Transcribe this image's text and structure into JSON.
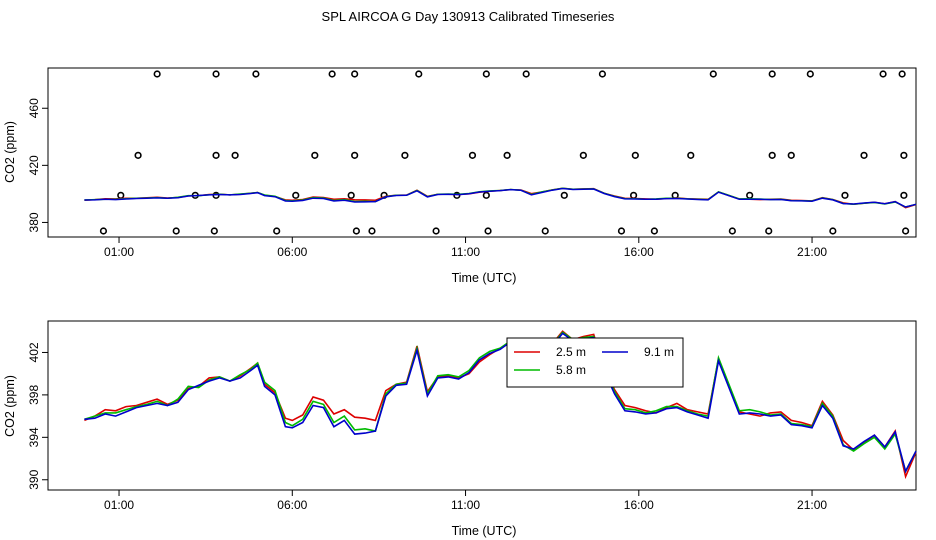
{
  "title": "SPL AIRCOA G  Day 130913  Calibrated Timeseries",
  "chart_data": [
    {
      "type": "scatter",
      "xlabel": "Time (UTC)",
      "ylabel": "CO2 (ppm)",
      "x_ticks": [
        "01:00",
        "06:00",
        "11:00",
        "16:00",
        "21:00"
      ],
      "x_tick_hours": [
        1,
        6,
        11,
        16,
        21
      ],
      "xlim": [
        -1.05,
        24.0
      ],
      "y_ticks": [
        380,
        420,
        460
      ],
      "ylim": [
        374,
        484
      ],
      "grid": false,
      "reference_points": {
        "x": [
          0.55,
          1.05,
          1.55,
          2.1,
          2.65,
          3.2,
          3.75,
          3.8,
          3.8,
          3.8,
          4.35,
          4.95,
          5.55,
          6.1,
          6.65,
          7.15,
          7.7,
          7.8,
          7.8,
          7.85,
          8.3,
          8.65,
          9.25,
          9.65,
          10.15,
          10.75,
          11.2,
          11.6,
          11.6,
          11.65,
          12.2,
          12.75,
          13.3,
          13.85,
          14.4,
          14.95,
          15.5,
          15.85,
          15.9,
          16.45,
          17.05,
          17.5,
          18.15,
          18.7,
          19.2,
          19.75,
          19.85,
          19.85,
          20.4,
          20.95,
          21.6,
          21.95,
          22.5,
          23.05,
          23.6,
          23.65,
          23.65,
          23.7
        ],
        "y": [
          374,
          399,
          427,
          484,
          374,
          399,
          374,
          427,
          484,
          399,
          427,
          484,
          374,
          399,
          427,
          484,
          399,
          484,
          427,
          374,
          374,
          399,
          427,
          484,
          374,
          399,
          427,
          484,
          399,
          374,
          427,
          484,
          374,
          399,
          427,
          484,
          374,
          399,
          427,
          374,
          399,
          427,
          484,
          374,
          399,
          374,
          484,
          427,
          427,
          484,
          374,
          399,
          427,
          484,
          484,
          399,
          427,
          374
        ]
      },
      "series_shared_x": [
        -0.95,
        -0.6,
        -0.3,
        0.0,
        0.3,
        0.6,
        0.9,
        1.2,
        1.5,
        1.8,
        2.1,
        2.4,
        2.7,
        3.0,
        3.3,
        3.6,
        3.9,
        4.2,
        4.5,
        4.8,
        5.0,
        5.3,
        5.6,
        5.9,
        6.1,
        6.4,
        6.7,
        7.0,
        7.3,
        7.6,
        7.9,
        8.2,
        8.5,
        8.8,
        9.1,
        9.4,
        9.6,
        9.9,
        10.2,
        10.5,
        10.8,
        11.1,
        11.4,
        11.7,
        12.0,
        12.3,
        12.6,
        12.9,
        13.2,
        13.5,
        13.8,
        14.1,
        14.4,
        14.7,
        15.0,
        15.3,
        15.6,
        15.9,
        16.2,
        16.5,
        16.8,
        17.1,
        17.4,
        17.7,
        18.0,
        18.3,
        18.6,
        18.9,
        19.2,
        19.5,
        19.8,
        20.1,
        20.4,
        20.7,
        21.0,
        21.3,
        21.6,
        21.9,
        22.2,
        22.5,
        22.8,
        23.1,
        23.4,
        23.7,
        24.0
      ]
    },
    {
      "type": "line",
      "xlabel": "Time (UTC)",
      "ylabel": "CO2 (ppm)",
      "x_ticks": [
        "01:00",
        "06:00",
        "11:00",
        "16:00",
        "21:00"
      ],
      "x_tick_hours": [
        1,
        6,
        11,
        16,
        21
      ],
      "xlim": [
        -1.05,
        24.0
      ],
      "y_ticks": [
        390,
        394,
        398,
        402
      ],
      "ylim": [
        389.6,
        404.4
      ],
      "grid": false,
      "legend_position": "top-center",
      "x": [
        0.0,
        0.3,
        0.6,
        0.9,
        1.2,
        1.5,
        1.8,
        2.1,
        2.4,
        2.7,
        3.0,
        3.3,
        3.6,
        3.9,
        4.2,
        4.5,
        4.8,
        5.0,
        5.2,
        5.5,
        5.8,
        6.0,
        6.3,
        6.6,
        6.9,
        7.2,
        7.5,
        7.8,
        8.1,
        8.4,
        8.7,
        9.0,
        9.3,
        9.6,
        9.9,
        10.2,
        10.5,
        10.8,
        11.1,
        11.4,
        11.7,
        12.0,
        12.3,
        12.6,
        12.9,
        13.2,
        13.5,
        13.8,
        14.1,
        14.4,
        14.7,
        15.0,
        15.3,
        15.6,
        15.9,
        16.2,
        16.5,
        16.8,
        17.1,
        17.4,
        17.7,
        18.0,
        18.3,
        18.6,
        18.9,
        19.2,
        19.5,
        19.8,
        20.1,
        20.4,
        20.7,
        21.0,
        21.3,
        21.6,
        21.9,
        22.2,
        22.5,
        22.8,
        23.1,
        23.4,
        23.7,
        24.0
      ],
      "series": [
        {
          "name": "2.5 m",
          "color": "#dd0000",
          "values": [
            395.6,
            396.0,
            396.6,
            396.5,
            396.9,
            397.0,
            397.3,
            397.6,
            397.1,
            397.5,
            398.6,
            398.8,
            399.6,
            399.7,
            399.3,
            399.8,
            400.5,
            401.0,
            399.0,
            398.2,
            395.8,
            395.6,
            396.1,
            397.8,
            397.5,
            396.2,
            396.6,
            395.9,
            395.8,
            395.6,
            398.4,
            399.0,
            399.2,
            402.6,
            398.3,
            399.7,
            399.8,
            399.6,
            400.0,
            401.1,
            401.8,
            402.4,
            403.0,
            402.7,
            400.2,
            401.3,
            402.8,
            404.0,
            403.2,
            403.5,
            403.7,
            400.5,
            398.5,
            397.0,
            396.8,
            396.5,
            396.3,
            396.8,
            397.2,
            396.6,
            396.4,
            396.2,
            401.4,
            398.9,
            396.4,
            396.2,
            396.0,
            396.3,
            396.4,
            395.6,
            395.4,
            395.1,
            397.4,
            396.1,
            393.7,
            392.8,
            393.5,
            394.2,
            393.1,
            394.6,
            390.3,
            392.6
          ]
        },
        {
          "name": "5.8 m",
          "color": "#00bb00",
          "values": [
            395.7,
            396.0,
            396.3,
            396.3,
            396.6,
            396.9,
            397.1,
            397.4,
            397.0,
            397.6,
            398.8,
            398.7,
            399.4,
            399.7,
            399.3,
            399.9,
            400.4,
            401.0,
            399.2,
            398.4,
            395.4,
            395.1,
            395.7,
            397.4,
            397.1,
            395.4,
            396.0,
            394.7,
            394.8,
            394.6,
            398.1,
            399.0,
            399.1,
            402.4,
            398.1,
            399.8,
            399.9,
            399.7,
            400.3,
            401.5,
            402.1,
            402.4,
            403.1,
            402.6,
            399.6,
            401.4,
            402.7,
            403.9,
            403.2,
            403.4,
            403.5,
            400.5,
            398.3,
            396.7,
            396.6,
            396.3,
            396.5,
            396.9,
            396.9,
            396.5,
            396.2,
            396.0,
            401.5,
            399.0,
            396.5,
            396.6,
            396.4,
            396.1,
            396.2,
            395.3,
            395.2,
            395.0,
            397.2,
            396.0,
            393.3,
            392.7,
            393.4,
            394.0,
            392.9,
            394.3,
            390.8,
            392.7
          ]
        },
        {
          "name": "9.1 m",
          "color": "#0000cc",
          "values": [
            395.7,
            395.8,
            396.2,
            396.0,
            396.4,
            396.8,
            397.0,
            397.2,
            397.0,
            397.3,
            398.5,
            398.9,
            399.3,
            399.6,
            399.3,
            399.6,
            400.3,
            400.8,
            398.8,
            398.0,
            395.0,
            394.9,
            395.4,
            397.0,
            396.8,
            395.0,
            395.6,
            394.3,
            394.4,
            394.6,
            397.9,
            398.9,
            399.0,
            402.2,
            397.9,
            399.6,
            399.7,
            399.5,
            400.1,
            401.3,
            401.9,
            402.3,
            403.0,
            402.5,
            399.3,
            401.0,
            402.6,
            403.8,
            403.1,
            403.3,
            403.4,
            400.3,
            398.1,
            396.5,
            396.4,
            396.2,
            396.3,
            396.7,
            396.8,
            396.4,
            396.1,
            395.8,
            401.2,
            398.7,
            396.2,
            396.3,
            396.2,
            396.0,
            396.1,
            395.2,
            395.1,
            394.9,
            397.0,
            395.8,
            393.2,
            392.9,
            393.6,
            394.2,
            393.1,
            394.5,
            390.8,
            392.7
          ]
        }
      ]
    }
  ]
}
